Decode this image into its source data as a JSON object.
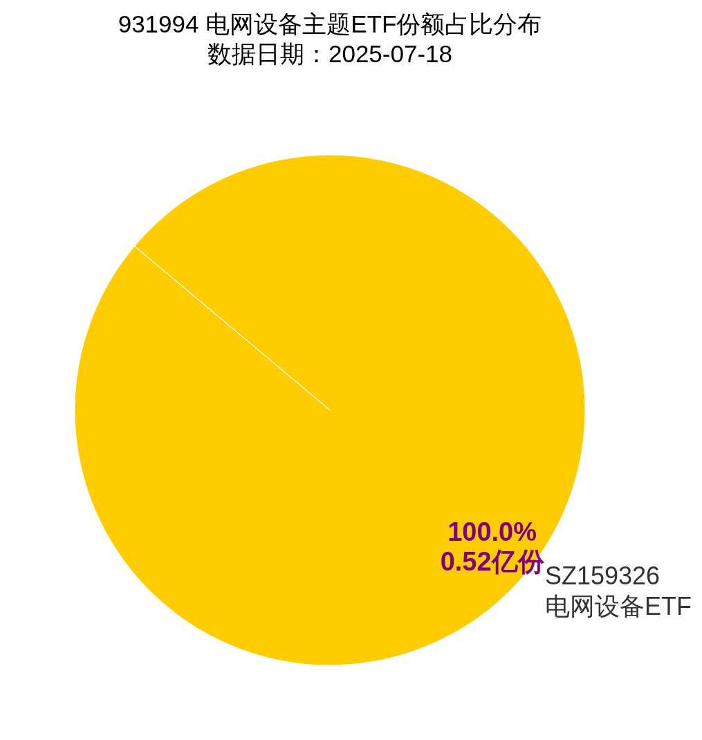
{
  "chart_data": {
    "type": "pie",
    "title": "931994 电网设备主题ETF份额占比分布",
    "subtitle": "数据日期：2025-07-18",
    "categories": [
      "SZ159326\n电网设备ETF"
    ],
    "values": [
      100
    ],
    "colors": [
      "#ffcc00"
    ],
    "value_labels": [
      "100.0%\n0.52亿份"
    ]
  }
}
